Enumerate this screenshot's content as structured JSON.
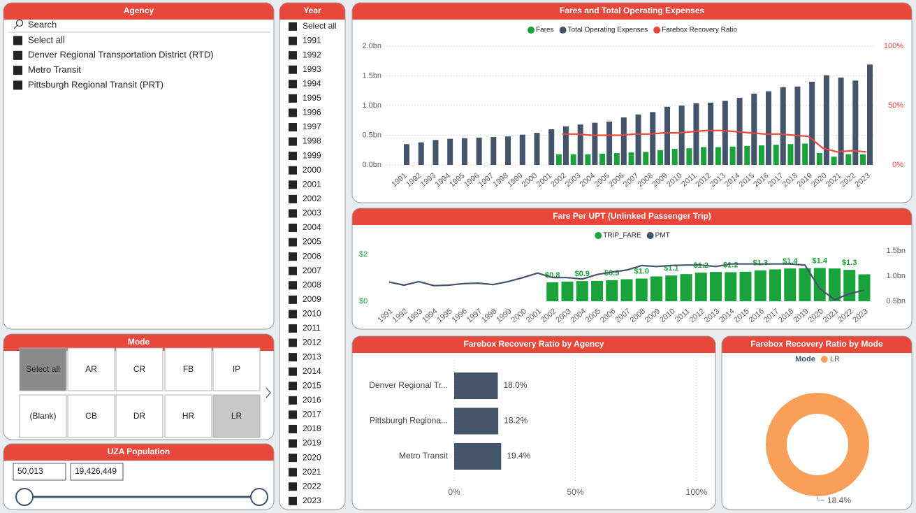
{
  "agency_slicer": {
    "title": "Agency",
    "search_placeholder": "Search",
    "items": [
      "Select all",
      "Denver Regional Transportation District (RTD)",
      "Metro Transit",
      "Pittsburgh Regional Transit (PRT)"
    ]
  },
  "year_slicer": {
    "title": "Year",
    "items": [
      "Select all",
      "1991",
      "1992",
      "1993",
      "1994",
      "1995",
      "1996",
      "1997",
      "1998",
      "1999",
      "2000",
      "2001",
      "2002",
      "2003",
      "2004",
      "2005",
      "2006",
      "2007",
      "2008",
      "2009",
      "2010",
      "2011",
      "2012",
      "2013",
      "2014",
      "2015",
      "2016",
      "2017",
      "2018",
      "2019",
      "2020",
      "2021",
      "2022",
      "2023"
    ]
  },
  "mode_slicer": {
    "title": "Mode",
    "items": [
      "Select all",
      "AR",
      "CR",
      "FB",
      "IP",
      "(Blank)",
      "CB",
      "DR",
      "HR",
      "LR"
    ]
  },
  "uza_population": {
    "title": "UZA Population",
    "min": "50,013",
    "max": "19,426,449"
  },
  "chart_data": [
    {
      "type": "bar",
      "title": "Fares and Total Operating Expenses",
      "categories": [
        "1991",
        "1992",
        "1993",
        "1994",
        "1995",
        "1996",
        "1997",
        "1998",
        "1999",
        "2000",
        "2001",
        "2002",
        "2003",
        "2004",
        "2005",
        "2006",
        "2007",
        "2008",
        "2009",
        "2010",
        "2011",
        "2012",
        "2013",
        "2014",
        "2015",
        "2016",
        "2017",
        "2018",
        "2019",
        "2020",
        "2021",
        "2022",
        "2023"
      ],
      "series": [
        {
          "name": "Fares",
          "type": "bar",
          "color": "#1aa33a",
          "values": [
            null,
            null,
            null,
            null,
            null,
            null,
            null,
            null,
            null,
            null,
            null,
            0.18,
            0.18,
            0.18,
            0.19,
            0.2,
            0.21,
            0.22,
            0.25,
            0.27,
            0.28,
            0.3,
            0.3,
            0.31,
            0.32,
            0.33,
            0.34,
            0.35,
            0.36,
            0.2,
            0.14,
            0.18,
            0.18
          ]
        },
        {
          "name": "Total Operating Expenses",
          "type": "bar",
          "color": "#44546a",
          "values": [
            0.35,
            0.38,
            0.42,
            0.44,
            0.45,
            0.46,
            0.47,
            0.48,
            0.51,
            0.54,
            0.6,
            0.65,
            0.68,
            0.71,
            0.73,
            0.8,
            0.85,
            0.89,
            0.98,
            1.0,
            1.04,
            1.05,
            1.08,
            1.13,
            1.2,
            1.24,
            1.31,
            1.32,
            1.4,
            1.51,
            1.47,
            1.42,
            1.69
          ]
        },
        {
          "name": "Farebox Recovery Ratio",
          "type": "line",
          "axis": "y2",
          "color": "#e8473b",
          "values": [
            null,
            null,
            null,
            null,
            null,
            null,
            null,
            null,
            null,
            null,
            null,
            26,
            26,
            25,
            25,
            25,
            26,
            26,
            27,
            27,
            28,
            29,
            29,
            28,
            27,
            26,
            26,
            25,
            24,
            14,
            11,
            12,
            11
          ]
        }
      ],
      "ylim": [
        0,
        2.0
      ],
      "yticks": [
        {
          "value": 0,
          "label": "0.0bn"
        },
        {
          "value": 0.5,
          "label": "0.5bn"
        },
        {
          "value": 1.0,
          "label": "1.0bn"
        },
        {
          "value": 1.5,
          "label": "1.5bn"
        },
        {
          "value": 2.0,
          "label": "2.0bn"
        }
      ],
      "y2lim": [
        0,
        100
      ],
      "y2ticks": [
        {
          "value": 0,
          "label": "0%"
        },
        {
          "value": 50,
          "label": "50%"
        },
        {
          "value": 100,
          "label": "100%"
        }
      ],
      "grid": true
    },
    {
      "type": "bar",
      "title": "Fare Per UPT (Unlinked Passenger Trip)",
      "categories": [
        "1991",
        "1992",
        "1993",
        "1994",
        "1995",
        "1996",
        "1997",
        "1998",
        "1999",
        "2000",
        "2001",
        "2002",
        "2003",
        "2004",
        "2005",
        "2006",
        "2007",
        "2008",
        "2009",
        "2010",
        "2011",
        "2012",
        "2013",
        "2014",
        "2015",
        "2016",
        "2017",
        "2018",
        "2019",
        "2020",
        "2021",
        "2022",
        "2023"
      ],
      "series": [
        {
          "name": "TRIP_FARE",
          "type": "bar",
          "color": "#1aa33a",
          "values": [
            null,
            null,
            null,
            null,
            null,
            null,
            null,
            null,
            null,
            null,
            null,
            0.81,
            0.84,
            0.86,
            0.87,
            0.9,
            0.94,
            0.97,
            1.06,
            1.1,
            1.16,
            1.22,
            1.25,
            1.24,
            1.26,
            1.32,
            1.36,
            1.4,
            1.41,
            1.42,
            1.4,
            1.34,
            1.15
          ],
          "value_labels": [
            null,
            null,
            null,
            null,
            null,
            null,
            null,
            null,
            null,
            null,
            null,
            "$0.8",
            null,
            "$0.9",
            null,
            "$0.9",
            null,
            "$1.0",
            null,
            "$1.1",
            null,
            "$1.2",
            null,
            "$1.2",
            null,
            "$1.3",
            null,
            "$1.4",
            null,
            "$1.4",
            null,
            "$1.3",
            null
          ]
        },
        {
          "name": "PMT",
          "type": "line",
          "axis": "y2",
          "color": "#44546a",
          "values": [
            0.88,
            0.82,
            0.89,
            0.81,
            0.82,
            0.85,
            0.86,
            0.83,
            0.89,
            0.97,
            1.06,
            0.97,
            0.97,
            0.94,
            1.03,
            1.08,
            1.12,
            1.21,
            1.19,
            1.21,
            1.22,
            1.22,
            1.19,
            1.24,
            1.24,
            1.24,
            1.24,
            1.24,
            1.22,
            0.75,
            0.53,
            0.65,
            0.72
          ]
        }
      ],
      "ylim": [
        0,
        2.15
      ],
      "yticks": [
        {
          "value": 0,
          "label": "$0"
        },
        {
          "value": 2,
          "label": "$2"
        }
      ],
      "y2lim": [
        0.5,
        1.5
      ],
      "y2ticks": [
        {
          "value": 0.5,
          "label": "0.5bn"
        },
        {
          "value": 1.0,
          "label": "1.0bn"
        },
        {
          "value": 1.5,
          "label": "1.5bn"
        }
      ],
      "grid": false
    },
    {
      "type": "bar",
      "orientation": "horizontal",
      "title": "Farebox Recovery Ratio by Agency",
      "categories": [
        "Denver Regional Tr...",
        "Pittsburgh Regiona...",
        "Metro Transit"
      ],
      "values": [
        18.0,
        18.2,
        19.4
      ],
      "value_labels": [
        "18.0%",
        "18.2%",
        "19.4%"
      ],
      "color": "#44546a",
      "xlim": [
        0,
        100
      ],
      "xticks": [
        {
          "value": 0,
          "label": "0%"
        },
        {
          "value": 50,
          "label": "50%"
        },
        {
          "value": 100,
          "label": "100%"
        }
      ],
      "grid": true
    },
    {
      "type": "pie",
      "donut": true,
      "title": "Farebox Recovery Ratio by Mode",
      "legend_title": "Mode",
      "categories": [
        "LR"
      ],
      "values": [
        18.4
      ],
      "value_labels": [
        "18.4%"
      ],
      "colors": [
        "#f8a05a"
      ]
    }
  ]
}
